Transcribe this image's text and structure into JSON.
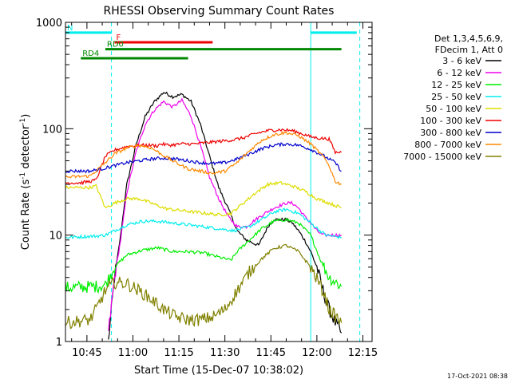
{
  "chart_data": {
    "type": "line",
    "title": "RHESSI Observing Summary Count Rates",
    "xlabel": "Start Time (15-Dec-07 10:38:02)",
    "ylabel": "Count Rate (s",
    "ylabel_sup": "-1",
    "ylabel_tail": " detector",
    "ylabel_sup2": "-1",
    "ylabel_close": ")",
    "y_scale": "log",
    "ylim": [
      1,
      1000
    ],
    "xlim_minutes": [
      0,
      100
    ],
    "x_ticks": [
      {
        "label": "10:45",
        "t": 7
      },
      {
        "label": "11:00",
        "t": 22
      },
      {
        "label": "11:15",
        "t": 37
      },
      {
        "label": "11:30",
        "t": 52
      },
      {
        "label": "11:45",
        "t": 67
      },
      {
        "label": "12:00",
        "t": 82
      },
      {
        "label": "12:15",
        "t": 97
      }
    ],
    "y_ticks": [
      {
        "label": "1",
        "v": 1
      },
      {
        "label": "10",
        "v": 10
      },
      {
        "label": "100",
        "v": 100
      },
      {
        "label": "1000",
        "v": 1000
      }
    ],
    "legend": {
      "placement": "right",
      "header1": "Det 1,3,4,5,6,9,",
      "header2": "FDecim 1, Att 0"
    },
    "series": [
      {
        "name": "3 - 6 keV",
        "color": "#000000",
        "points": [
          [
            14,
            1
          ],
          [
            16,
            4
          ],
          [
            18,
            10
          ],
          [
            20,
            30
          ],
          [
            23,
            70
          ],
          [
            26,
            130
          ],
          [
            29,
            180
          ],
          [
            32,
            220
          ],
          [
            35,
            200
          ],
          [
            38,
            210
          ],
          [
            41,
            180
          ],
          [
            44,
            110
          ],
          [
            47,
            55
          ],
          [
            50,
            28
          ],
          [
            53,
            18
          ],
          [
            56,
            11
          ],
          [
            59,
            9
          ],
          [
            63,
            8
          ],
          [
            66,
            12
          ],
          [
            68,
            14
          ],
          [
            70,
            14
          ],
          [
            72,
            14
          ],
          [
            74,
            13
          ],
          [
            76,
            11
          ],
          [
            78,
            9
          ],
          [
            80,
            7
          ],
          [
            82,
            5
          ],
          [
            84,
            3
          ],
          [
            86,
            2
          ],
          [
            88,
            1.5
          ],
          [
            90,
            1.2
          ]
        ]
      },
      {
        "name": "6 - 12 keV",
        "color": "#ee00ee",
        "points": [
          [
            14,
            1.2
          ],
          [
            16,
            4
          ],
          [
            18,
            9
          ],
          [
            20,
            25
          ],
          [
            23,
            60
          ],
          [
            26,
            110
          ],
          [
            29,
            150
          ],
          [
            32,
            180
          ],
          [
            35,
            160
          ],
          [
            38,
            185
          ],
          [
            41,
            130
          ],
          [
            44,
            70
          ],
          [
            47,
            35
          ],
          [
            50,
            22
          ],
          [
            53,
            15
          ],
          [
            56,
            12
          ],
          [
            59,
            12
          ],
          [
            62,
            14
          ],
          [
            65,
            16
          ],
          [
            68,
            18
          ],
          [
            70,
            19
          ],
          [
            72,
            20
          ],
          [
            74,
            20
          ],
          [
            76,
            18
          ],
          [
            78,
            15
          ],
          [
            80,
            13
          ],
          [
            82,
            11
          ],
          [
            84,
            10
          ],
          [
            86,
            10
          ],
          [
            90,
            10
          ]
        ]
      },
      {
        "name": "12 - 25 keV",
        "color": "#00ee00",
        "points": [
          [
            0,
            3.2
          ],
          [
            10,
            3.3
          ],
          [
            13,
            3.4
          ],
          [
            16,
            5
          ],
          [
            20,
            6.5
          ],
          [
            25,
            7.2
          ],
          [
            30,
            7.6
          ],
          [
            35,
            7
          ],
          [
            40,
            7
          ],
          [
            45,
            6.8
          ],
          [
            50,
            6.2
          ],
          [
            54,
            5.8
          ],
          [
            56,
            7
          ],
          [
            60,
            9
          ],
          [
            64,
            11.5
          ],
          [
            68,
            13.5
          ],
          [
            72,
            14
          ],
          [
            76,
            13
          ],
          [
            80,
            10
          ],
          [
            83,
            6
          ],
          [
            86,
            4
          ],
          [
            90,
            3.3
          ]
        ]
      },
      {
        "name": "25 - 50 keV",
        "color": "#00eeee",
        "points": [
          [
            0,
            9.5
          ],
          [
            10,
            9.8
          ],
          [
            13,
            10
          ],
          [
            16,
            11
          ],
          [
            20,
            12.5
          ],
          [
            25,
            13.5
          ],
          [
            30,
            13.5
          ],
          [
            35,
            13
          ],
          [
            40,
            12.5
          ],
          [
            45,
            12
          ],
          [
            50,
            11.5
          ],
          [
            55,
            11
          ],
          [
            60,
            12
          ],
          [
            64,
            14
          ],
          [
            68,
            16.5
          ],
          [
            72,
            17.5
          ],
          [
            76,
            16
          ],
          [
            80,
            13
          ],
          [
            83,
            11
          ],
          [
            85,
            10
          ],
          [
            90,
            9.5
          ]
        ]
      },
      {
        "name": "50 - 100 keV",
        "color": "#dddd00",
        "points": [
          [
            0,
            28
          ],
          [
            8,
            28
          ],
          [
            10,
            29
          ],
          [
            13,
            18
          ],
          [
            16,
            20
          ],
          [
            20,
            22
          ],
          [
            24,
            22
          ],
          [
            28,
            20
          ],
          [
            30,
            19
          ],
          [
            32,
            18
          ],
          [
            34,
            17.5
          ],
          [
            38,
            17
          ],
          [
            42,
            16.5
          ],
          [
            46,
            16
          ],
          [
            50,
            15.5
          ],
          [
            54,
            16
          ],
          [
            58,
            20
          ],
          [
            62,
            25
          ],
          [
            66,
            30
          ],
          [
            70,
            31
          ],
          [
            74,
            29
          ],
          [
            78,
            26
          ],
          [
            82,
            22
          ],
          [
            86,
            20
          ],
          [
            88,
            19
          ],
          [
            90,
            18
          ]
        ]
      },
      {
        "name": "100 - 300 keV",
        "color": "#ee0000",
        "points": [
          [
            0,
            31
          ],
          [
            5,
            31
          ],
          [
            8,
            32
          ],
          [
            10,
            33
          ],
          [
            13,
            55
          ],
          [
            16,
            63
          ],
          [
            20,
            68
          ],
          [
            24,
            70
          ],
          [
            28,
            70
          ],
          [
            30,
            69
          ],
          [
            31,
            72
          ],
          [
            34,
            70
          ],
          [
            38,
            72
          ],
          [
            42,
            72
          ],
          [
            46,
            74
          ],
          [
            50,
            76
          ],
          [
            54,
            78
          ],
          [
            58,
            82
          ],
          [
            62,
            90
          ],
          [
            66,
            96
          ],
          [
            70,
            98
          ],
          [
            74,
            96
          ],
          [
            78,
            88
          ],
          [
            80,
            84
          ],
          [
            82,
            82
          ],
          [
            86,
            80
          ],
          [
            88,
            60
          ],
          [
            90,
            60
          ]
        ]
      },
      {
        "name": "300 - 800 keV",
        "color": "#0000cc",
        "points": [
          [
            0,
            40
          ],
          [
            8,
            40
          ],
          [
            12,
            42
          ],
          [
            16,
            45
          ],
          [
            20,
            48
          ],
          [
            24,
            50
          ],
          [
            28,
            52
          ],
          [
            32,
            53
          ],
          [
            36,
            52
          ],
          [
            40,
            50
          ],
          [
            44,
            48
          ],
          [
            48,
            47
          ],
          [
            52,
            48
          ],
          [
            56,
            52
          ],
          [
            60,
            58
          ],
          [
            64,
            65
          ],
          [
            68,
            70
          ],
          [
            72,
            72
          ],
          [
            76,
            70
          ],
          [
            80,
            64
          ],
          [
            84,
            56
          ],
          [
            88,
            48
          ],
          [
            90,
            40
          ]
        ]
      },
      {
        "name": "800 - 7000 keV",
        "color": "#ff8800",
        "points": [
          [
            0,
            35
          ],
          [
            8,
            36
          ],
          [
            12,
            45
          ],
          [
            16,
            58
          ],
          [
            20,
            66
          ],
          [
            24,
            70
          ],
          [
            28,
            66
          ],
          [
            32,
            56
          ],
          [
            36,
            48
          ],
          [
            40,
            42
          ],
          [
            44,
            40
          ],
          [
            48,
            38
          ],
          [
            52,
            40
          ],
          [
            56,
            48
          ],
          [
            60,
            62
          ],
          [
            64,
            78
          ],
          [
            68,
            88
          ],
          [
            72,
            92
          ],
          [
            76,
            86
          ],
          [
            80,
            72
          ],
          [
            84,
            55
          ],
          [
            86,
            45
          ],
          [
            88,
            32
          ],
          [
            90,
            30
          ]
        ]
      },
      {
        "name": "7000 - 15000 keV",
        "color": "#808000",
        "points": [
          [
            0,
            1.5
          ],
          [
            8,
            1.6
          ],
          [
            10,
            2
          ],
          [
            13,
            3
          ],
          [
            16,
            3.6
          ],
          [
            20,
            3.5
          ],
          [
            24,
            3
          ],
          [
            28,
            2.5
          ],
          [
            32,
            2
          ],
          [
            36,
            1.7
          ],
          [
            40,
            1.6
          ],
          [
            44,
            1.6
          ],
          [
            48,
            1.7
          ],
          [
            52,
            2
          ],
          [
            56,
            3
          ],
          [
            60,
            4.5
          ],
          [
            64,
            6
          ],
          [
            68,
            7.5
          ],
          [
            72,
            8
          ],
          [
            76,
            7
          ],
          [
            80,
            5
          ],
          [
            84,
            3
          ],
          [
            86,
            2
          ],
          [
            90,
            1.5
          ]
        ]
      }
    ],
    "annotations": [
      {
        "label": "N",
        "color": "#00eeee",
        "y": 800,
        "t0": 0,
        "t1": 15
      },
      {
        "label": "",
        "color": "#00eeee",
        "y": 800,
        "t0": 80,
        "t1": 95
      },
      {
        "label": "F",
        "color": "#ee0000",
        "y": 650,
        "t0": 16,
        "t1": 48
      },
      {
        "label": "RD0",
        "color": "#008800",
        "y": 560,
        "t0": 13,
        "t1": 90
      },
      {
        "label": "RD4",
        "color": "#008800",
        "y": 460,
        "t0": 5,
        "t1": 40
      }
    ],
    "vlines_dashed": [
      {
        "t": 15,
        "color": "#00eeee"
      },
      {
        "t": 96,
        "color": "#00eeee"
      }
    ],
    "vlines_solid": [
      {
        "t": 0,
        "color": "#00eeee"
      },
      {
        "t": 80,
        "color": "#00eeee"
      }
    ],
    "timestamp": "17-Oct-2021 08:38"
  }
}
